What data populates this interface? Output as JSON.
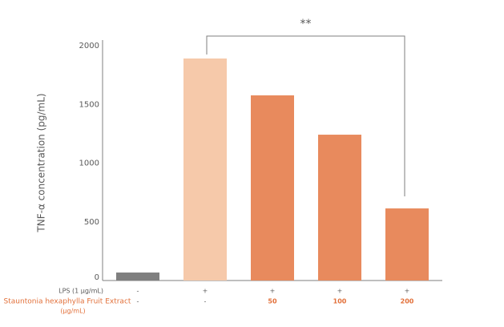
{
  "chart_data": {
    "type": "bar",
    "ylabel": "TNF-α concentration (pg/mL)",
    "values": [
      68,
      1891,
      1577,
      1242,
      614
    ],
    "colors": [
      "#7f7f7f",
      "#f6c9aa",
      "#e88a5d",
      "#e88a5d",
      "#e88a5d"
    ],
    "ylim": [
      0,
      2000
    ],
    "yticks": [
      0,
      500,
      1000,
      1500,
      2000
    ],
    "grid": false,
    "annotation": "**",
    "conditions": [
      {
        "label": "LPS (1 μg/mL)",
        "values": [
          "-",
          "+",
          "+",
          "+",
          "+"
        ]
      },
      {
        "label": "Stauntonia hexaphylla Fruit Extract",
        "unit": "(μg/mL)",
        "values": [
          "-",
          "-",
          "50",
          "100",
          "200"
        ]
      }
    ]
  }
}
